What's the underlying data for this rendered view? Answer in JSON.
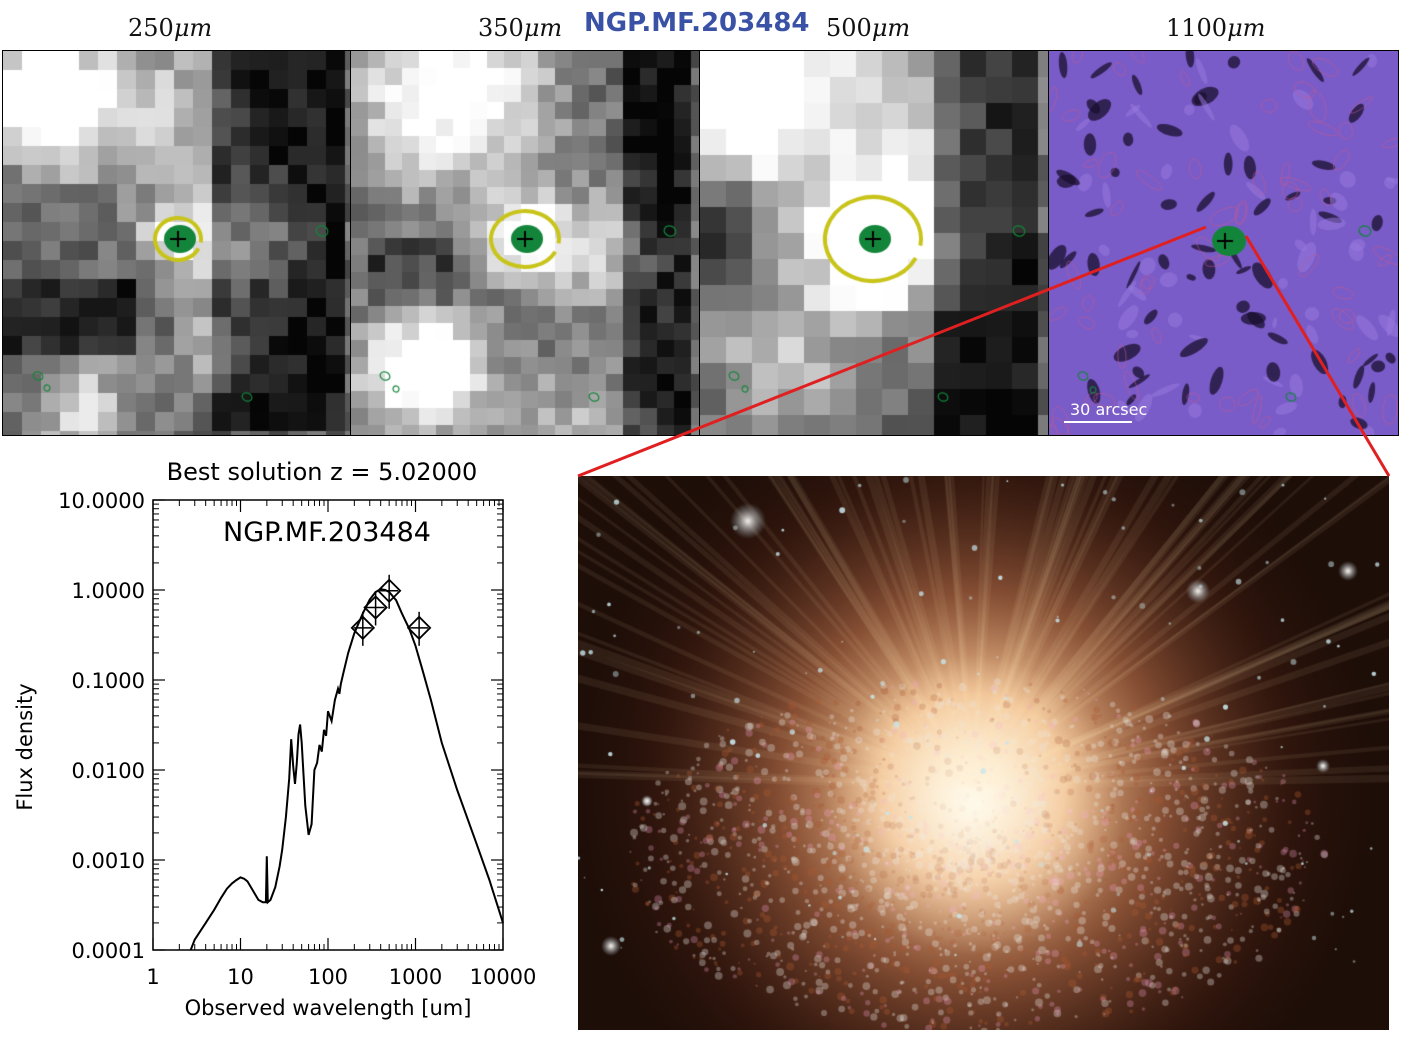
{
  "page_title": "NGP.MF.203484",
  "bands": [
    {
      "label": "250",
      "unit": "μm"
    },
    {
      "label": "350",
      "unit": "μm"
    },
    {
      "label": "500",
      "unit": "μm"
    },
    {
      "label": "1100",
      "unit": "μm"
    }
  ],
  "scalebar_label": "30 arcsec",
  "colors": {
    "title": "#3a52a6",
    "source_marker": "#13853a",
    "aperture": "#c8c41a",
    "connector": "#e02020",
    "map_1100": "#7a5cc8"
  },
  "icons": [
    "source-plus-icon",
    "aperture-ring-icon",
    "contour-icon"
  ],
  "chart_data": {
    "type": "line",
    "title": "Best solution z = 5.02000",
    "inner_label": "NGP.MF.203484",
    "xlabel": "Observed wavelength [um]",
    "ylabel": "Flux density",
    "xscale": "log",
    "yscale": "log",
    "xlim": [
      1,
      10000
    ],
    "ylim": [
      0.0001,
      10
    ],
    "xticks": [
      "1",
      "10",
      "100",
      "1000",
      "10000"
    ],
    "yticks": [
      "0.0001",
      "0.0010",
      "0.0100",
      "0.1000",
      "1.0000",
      "10.0000"
    ],
    "series": [
      {
        "kind": "model",
        "x": [
          2.7,
          3,
          4,
          5,
          6,
          7,
          8,
          9,
          10,
          11,
          12,
          14,
          16,
          18,
          19.5,
          20,
          20.5,
          22,
          25,
          28,
          30,
          33,
          36,
          38,
          40,
          42,
          44,
          46,
          48,
          50,
          55,
          60,
          65,
          70,
          75,
          80,
          85,
          90,
          95,
          100,
          110,
          120,
          130,
          135,
          140,
          150,
          170,
          200,
          250,
          300,
          350,
          400,
          450,
          500,
          600,
          700,
          850,
          1000,
          1200,
          1500,
          2000,
          3000,
          5000,
          7000,
          10000
        ],
        "y": [
          0.0001,
          0.00013,
          0.0002,
          0.00028,
          0.00038,
          0.00048,
          0.00055,
          0.0006,
          0.00064,
          0.00062,
          0.00058,
          0.00045,
          0.00036,
          0.00034,
          0.00034,
          0.0011,
          0.00034,
          0.00036,
          0.0005,
          0.00085,
          0.0013,
          0.003,
          0.008,
          0.022,
          0.011,
          0.007,
          0.012,
          0.025,
          0.032,
          0.02,
          0.004,
          0.0019,
          0.0025,
          0.01,
          0.012,
          0.019,
          0.016,
          0.028,
          0.024,
          0.045,
          0.035,
          0.06,
          0.08,
          0.07,
          0.09,
          0.12,
          0.2,
          0.33,
          0.55,
          0.78,
          0.95,
          1.02,
          1.0,
          0.95,
          0.77,
          0.55,
          0.37,
          0.24,
          0.13,
          0.06,
          0.02,
          0.006,
          0.0015,
          0.0006,
          0.0002
        ]
      },
      {
        "kind": "observed",
        "x": [
          250,
          350,
          500,
          1100
        ],
        "y": [
          0.38,
          0.64,
          0.98,
          0.38
        ]
      }
    ]
  }
}
